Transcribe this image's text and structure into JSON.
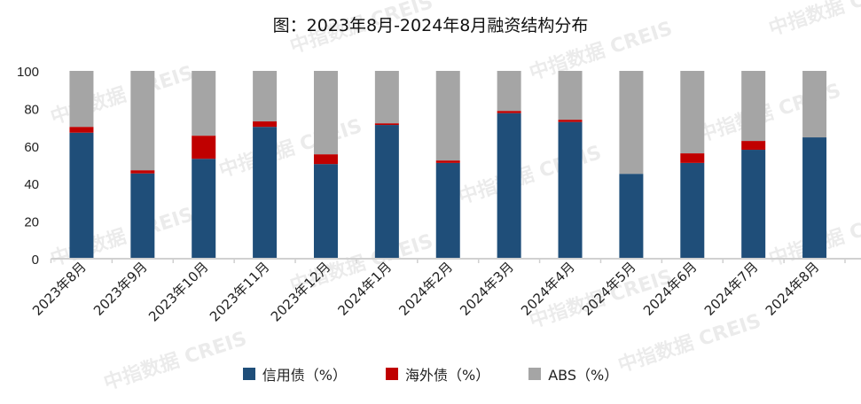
{
  "watermark": "中指数据 CREIS",
  "chart_data": {
    "type": "bar",
    "stacked": true,
    "title": "图：2023年8月-2024年8月融资结构分布",
    "xlabel": "",
    "ylabel": "",
    "ylim": [
      0,
      100
    ],
    "yticks": [
      0,
      20,
      40,
      60,
      80,
      100
    ],
    "grid": false,
    "legend_position": "bottom",
    "categories": [
      "2023年8月",
      "2023年9月",
      "2023年10月",
      "2023年11月",
      "2023年12月",
      "2024年1月",
      "2024年2月",
      "2024年3月",
      "2024年4月",
      "2024年5月",
      "2024年6月",
      "2024年7月",
      "2024年8月"
    ],
    "series": [
      {
        "name": "信用债（%）",
        "color": "#1f4e79",
        "values": [
          67.1,
          45.4,
          53.2,
          70.2,
          50.4,
          71.2,
          51.0,
          77.5,
          72.8,
          45.2,
          51.0,
          58.0,
          64.6
        ]
      },
      {
        "name": "海外债（%）",
        "color": "#c00000",
        "values": [
          3.1,
          1.7,
          12.3,
          2.9,
          5.2,
          0.9,
          1.3,
          1.2,
          1.2,
          0,
          5.1,
          4.7,
          0
        ]
      },
      {
        "name": "ABS（%）",
        "color": "#a5a5a5",
        "values": [
          29.8,
          52.9,
          34.5,
          26.9,
          44.4,
          27.9,
          47.7,
          21.3,
          26.0,
          54.8,
          43.9,
          37.3,
          35.4
        ]
      }
    ]
  }
}
